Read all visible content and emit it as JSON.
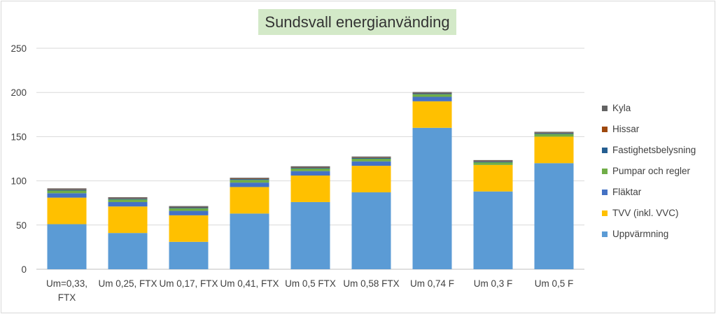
{
  "chart_data": {
    "type": "bar",
    "stacked": true,
    "title": "Sundsvall  energianvänding",
    "categories": [
      [
        "Um=0,33,",
        "FTX"
      ],
      [
        "Um 0,25, FTX"
      ],
      [
        "Um 0,17, FTX"
      ],
      [
        "Um 0,41, FTX"
      ],
      [
        "Um 0,5 FTX"
      ],
      [
        "Um 0,58 FTX"
      ],
      [
        "Um 0,74 F"
      ],
      [
        "Um 0,3 F"
      ],
      [
        "Um 0,5 F"
      ]
    ],
    "ylim": [
      0,
      250
    ],
    "yticks": [
      0,
      50,
      100,
      150,
      200,
      250
    ],
    "grid": true,
    "legend_position": "right",
    "series": [
      {
        "name": "Uppvärmning",
        "color": "#5b9bd5",
        "values": [
          51,
          41,
          31,
          63,
          76,
          87,
          160,
          88,
          120
        ]
      },
      {
        "name": "TVV (inkl. VVC)",
        "color": "#ffc000",
        "values": [
          30,
          30,
          30,
          30,
          30,
          30,
          30,
          30,
          30
        ]
      },
      {
        "name": "Fläktar",
        "color": "#4472c4",
        "values": [
          5,
          5,
          5,
          5,
          5,
          5,
          5,
          0,
          0
        ]
      },
      {
        "name": "Pumpar och regler",
        "color": "#70ad47",
        "values": [
          3,
          3,
          3,
          3,
          3,
          3,
          3,
          3,
          3
        ]
      },
      {
        "name": "Fastighetsbelysning",
        "color": "#255e91",
        "values": [
          1,
          1,
          1,
          1,
          1,
          1,
          1,
          1,
          1
        ]
      },
      {
        "name": "Hissar",
        "color": "#9e480e",
        "values": [
          0.5,
          0.5,
          0.5,
          0.5,
          0.5,
          0.5,
          0.5,
          0.5,
          0.5
        ]
      },
      {
        "name": "Kyla",
        "color": "#636363",
        "values": [
          1,
          1,
          1,
          1,
          1,
          1,
          1,
          1,
          1
        ]
      }
    ]
  }
}
